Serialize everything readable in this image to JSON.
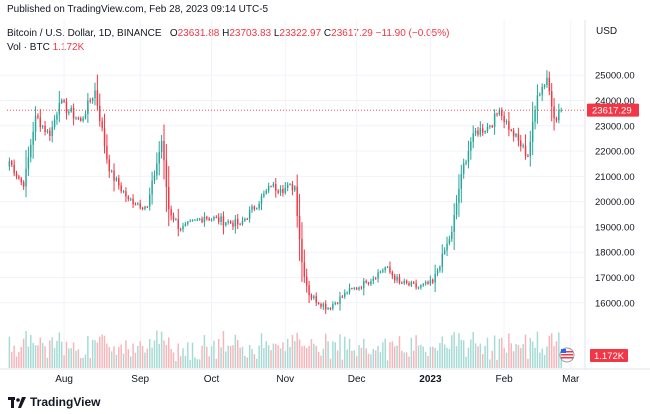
{
  "header": {
    "published": "Published on TradingView.com, Feb 28, 2023 09:14 UTC-5"
  },
  "legend": {
    "title": "Bitcoin / U.S. Dollar, 1D, BINANCE",
    "o_label": "O",
    "o": "23631.88",
    "h_label": "H",
    "h": "23703.83",
    "l_label": "L",
    "l": "23322.97",
    "c_label": "C",
    "c": "23617.29",
    "change": "−11.90 (−0.05%)",
    "vol_label": "Vol · BTC",
    "vol": "1.172K"
  },
  "price_axis": {
    "currency": "USD",
    "last_price": "23617.29",
    "last_volume": "1.172K"
  },
  "footer": {
    "brand": "TradingView"
  },
  "colors": {
    "up": "#26a69a",
    "down": "#f23645",
    "up_vol": "#a6dbd5",
    "down_vol": "#f7b5b9"
  },
  "chart_data": {
    "type": "candlestick",
    "title": "Bitcoin / U.S. Dollar, 1D, BINANCE",
    "ylabel": "USD",
    "ylim": [
      15200,
      25800
    ],
    "y_ticks": [
      "25000.00",
      "24000.00",
      "23000.00",
      "22000.00",
      "21000.00",
      "20000.00",
      "19000.00",
      "18000.00",
      "17000.00",
      "16000.00"
    ],
    "x_ticks": [
      "Aug",
      "Sep",
      "Oct",
      "Nov",
      "Dec",
      "2023",
      "Feb",
      "Mar"
    ],
    "x_ticks_bold": [
      "2023"
    ],
    "x_tick_days": [
      31,
      63,
      93,
      124,
      154,
      185,
      216,
      244
    ],
    "x_range_days": [
      7,
      250
    ],
    "last_day": 240,
    "legend_position": "top-left",
    "key_closes": [
      {
        "day": 8,
        "date": "Jul 8",
        "close": 21600
      },
      {
        "day": 14,
        "date": "Jul 14",
        "close": 20600
      },
      {
        "day": 19,
        "date": "Jul 19",
        "close": 23400
      },
      {
        "day": 25,
        "date": "Jul 25",
        "close": 22600
      },
      {
        "day": 29,
        "date": "Jul 29",
        "close": 23900
      },
      {
        "day": 38,
        "date": "Aug 7",
        "close": 23200
      },
      {
        "day": 44,
        "date": "Aug 13",
        "close": 24400
      },
      {
        "day": 50,
        "date": "Aug 19",
        "close": 21200
      },
      {
        "day": 58,
        "date": "Aug 27",
        "close": 20100
      },
      {
        "day": 66,
        "date": "Sep 5",
        "close": 19800
      },
      {
        "day": 72,
        "date": "Sep 12",
        "close": 22400
      },
      {
        "day": 75,
        "date": "Sep 15",
        "close": 19700
      },
      {
        "day": 80,
        "date": "Sep 20",
        "close": 18900
      },
      {
        "day": 90,
        "date": "Sep 30",
        "close": 19400
      },
      {
        "day": 105,
        "date": "Oct 15",
        "close": 19100
      },
      {
        "day": 118,
        "date": "Oct 28",
        "close": 20600
      },
      {
        "day": 122,
        "date": "Nov 1",
        "close": 20500
      },
      {
        "day": 128,
        "date": "Nov 7",
        "close": 20600
      },
      {
        "day": 131,
        "date": "Nov 10",
        "close": 17600
      },
      {
        "day": 134,
        "date": "Nov 13",
        "close": 16300
      },
      {
        "day": 142,
        "date": "Nov 21",
        "close": 15800
      },
      {
        "day": 150,
        "date": "Nov 29",
        "close": 16400
      },
      {
        "day": 158,
        "date": "Dec 7",
        "close": 16800
      },
      {
        "day": 166,
        "date": "Dec 15",
        "close": 17400
      },
      {
        "day": 172,
        "date": "Dec 21",
        "close": 16800
      },
      {
        "day": 180,
        "date": "Dec 29",
        "close": 16600
      },
      {
        "day": 186,
        "date": "Jan 4",
        "close": 16800
      },
      {
        "day": 194,
        "date": "Jan 12",
        "close": 18800
      },
      {
        "day": 198,
        "date": "Jan 16",
        "close": 21100
      },
      {
        "day": 203,
        "date": "Jan 21",
        "close": 22700
      },
      {
        "day": 210,
        "date": "Jan 28",
        "close": 23000
      },
      {
        "day": 214,
        "date": "Feb 1",
        "close": 23600
      },
      {
        "day": 219,
        "date": "Feb 6",
        "close": 22800
      },
      {
        "day": 226,
        "date": "Feb 13",
        "close": 21800
      },
      {
        "day": 230,
        "date": "Feb 17",
        "close": 24200
      },
      {
        "day": 234,
        "date": "Feb 21",
        "close": 24900
      },
      {
        "day": 237,
        "date": "Feb 24",
        "close": 23300
      },
      {
        "day": 240,
        "date": "Feb 27",
        "close": 23617.29
      }
    ]
  }
}
